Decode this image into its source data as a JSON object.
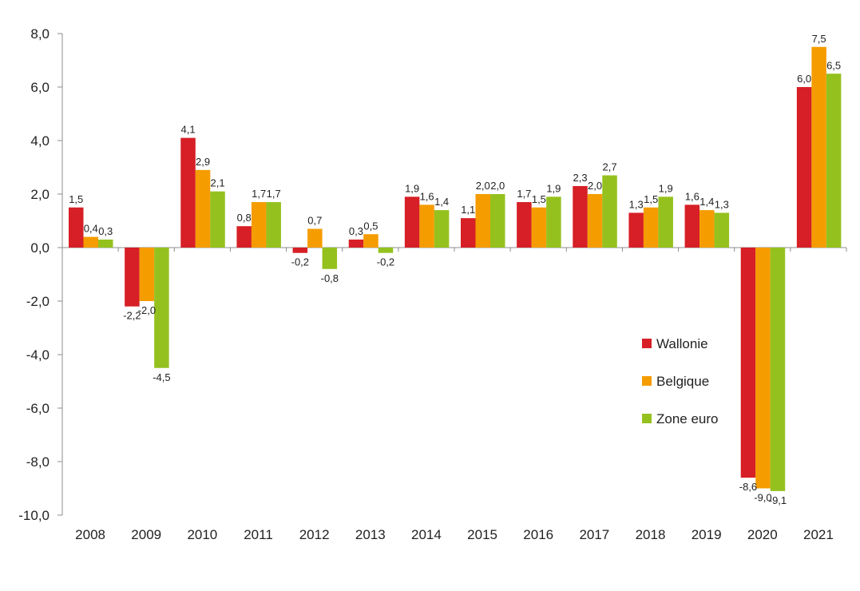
{
  "chart_data": {
    "type": "bar",
    "title": "",
    "xlabel": "",
    "ylabel": "",
    "categories": [
      "2008",
      "2009",
      "2010",
      "2011",
      "2012",
      "2013",
      "2014",
      "2015",
      "2016",
      "2017",
      "2018",
      "2019",
      "2020",
      "2021"
    ],
    "ylim": [
      -10,
      8
    ],
    "yticks": [
      "8,0",
      "6,0",
      "4,0",
      "2,0",
      "0,0",
      "-2,0",
      "-4,0",
      "-6,0",
      "-8,0",
      "-10,0"
    ],
    "ytick_values": [
      8,
      6,
      4,
      2,
      0,
      -2,
      -4,
      -6,
      -8,
      -10
    ],
    "grid": false,
    "legend_position": "right",
    "series": [
      {
        "name": "Wallonie",
        "color": "#d61f26",
        "values": [
          1.5,
          -2.2,
          4.1,
          0.8,
          -0.2,
          0.3,
          1.9,
          1.1,
          1.7,
          2.3,
          1.3,
          1.6,
          -8.6,
          6.0
        ],
        "labels": [
          "1,5",
          "-2,2",
          "4,1",
          "0,8",
          "-0,2",
          "0,3",
          "1,9",
          "1,1",
          "1,7",
          "2,3",
          "1,3",
          "1,6",
          "-8,6",
          "6,0"
        ]
      },
      {
        "name": "Belgique",
        "color": "#f59c00",
        "values": [
          0.4,
          -2.0,
          2.9,
          1.7,
          0.7,
          0.5,
          1.6,
          2.0,
          1.5,
          2.0,
          1.5,
          1.4,
          -9.0,
          7.5
        ],
        "labels": [
          "0,4",
          "-2,0",
          "2,9",
          "1,7",
          "0,7",
          "0,5",
          "1,6",
          "2,0",
          "1,5",
          "2,0",
          "1,5",
          "1,4",
          "-9,0",
          "7,5"
        ]
      },
      {
        "name": "Zone euro",
        "color": "#95c11f",
        "values": [
          0.3,
          -4.5,
          2.1,
          1.7,
          -0.8,
          -0.2,
          1.4,
          2.0,
          1.9,
          2.7,
          1.9,
          1.3,
          -9.1,
          6.5
        ],
        "labels": [
          "0,3",
          "-4,5",
          "2,1",
          "1,7",
          "-0,8",
          "-0,2",
          "1,4",
          "2,0",
          "1,9",
          "2,7",
          "1,9",
          "1,3",
          "-9,1",
          "6,5"
        ]
      }
    ]
  }
}
